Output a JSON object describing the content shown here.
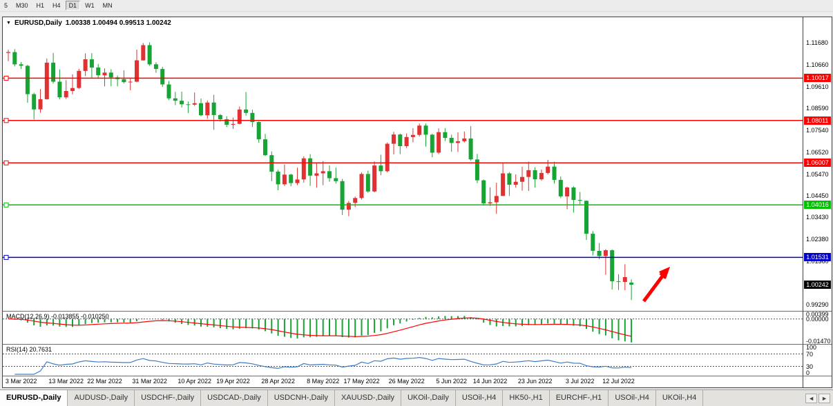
{
  "toolbar": {
    "periods": [
      "5",
      "M30",
      "H1",
      "H4",
      "D1",
      "W1",
      "MN"
    ],
    "active_period": "D1"
  },
  "chart": {
    "dropdown_icon": "▼",
    "title_symbol": "EURUSD,Daily",
    "title_ohlc": "1.00338 1.00494 0.99513 1.00242"
  },
  "chart_data": {
    "type": "candlestick",
    "symbol": "EURUSD",
    "timeframe": "Daily",
    "price_range": {
      "top": 1.129,
      "bottom": 0.99
    },
    "colors": {
      "bull": "#e03232",
      "bear": "#18a335"
    },
    "y_axis_labels": [
      "1.11680",
      "1.10660",
      "1.09610",
      "1.08590",
      "1.07540",
      "1.06520",
      "1.05470",
      "1.04450",
      "1.03430",
      "1.02380",
      "1.01360",
      "0.99290"
    ],
    "levels": [
      {
        "label": "1.10017",
        "price": 1.10017,
        "color": "#ff0000"
      },
      {
        "label": "1.08011",
        "price": 1.08011,
        "color": "#ff0000"
      },
      {
        "label": "1.06007",
        "price": 1.06007,
        "color": "#ff0000"
      },
      {
        "label": "1.04016",
        "price": 1.04016,
        "color": "#00c000"
      },
      {
        "label": "1.01531",
        "price": 1.01531,
        "color": "#0000c8"
      }
    ],
    "current_price": {
      "label": "1.00242",
      "price": 1.00242,
      "bg": "#000000"
    },
    "annotation": {
      "type": "arrow",
      "direction": "up-right",
      "color": "#ff0000"
    },
    "x_labels": [
      "3 Mar 2022",
      "13 Mar 2022",
      "22 Mar 2022",
      "31 Mar 2022",
      "10 Apr 2022",
      "19 Apr 2022",
      "28 Apr 2022",
      "8 May 2022",
      "17 May 2022",
      "26 May 2022",
      "5 Jun 2022",
      "14 Jun 2022",
      "23 Jun 2022",
      "3 Jul 2022",
      "12 Jul 2022"
    ],
    "x_label_indices": [
      2,
      9,
      15,
      22,
      29,
      35,
      42,
      49,
      55,
      62,
      69,
      75,
      82,
      89,
      95
    ],
    "candles": [
      [
        1.1121,
        1.1136,
        1.1082,
        1.1125
      ],
      [
        1.1125,
        1.1139,
        1.1057,
        1.1067
      ],
      [
        1.1067,
        1.1078,
        1.1045,
        1.106
      ],
      [
        1.106,
        1.1065,
        1.0885,
        1.0926
      ],
      [
        1.0926,
        1.0932,
        1.0806,
        1.0854
      ],
      [
        1.0854,
        1.095,
        1.0838,
        1.0902
      ],
      [
        1.0902,
        1.1095,
        1.09,
        1.1075
      ],
      [
        1.1075,
        1.1121,
        1.0976,
        1.0985
      ],
      [
        1.0985,
        1.1043,
        1.0901,
        1.0911
      ],
      [
        1.0911,
        1.0992,
        1.0903,
        1.0941
      ],
      [
        1.0941,
        1.102,
        1.0925,
        1.0955
      ],
      [
        1.0955,
        1.1046,
        1.095,
        1.1036
      ],
      [
        1.1036,
        1.1119,
        1.1012,
        1.1091
      ],
      [
        1.1091,
        1.112,
        1.1003,
        1.1052
      ],
      [
        1.1052,
        1.1069,
        1.0999,
        1.1015
      ],
      [
        1.1015,
        1.1048,
        1.0963,
        1.1028
      ],
      [
        1.1028,
        1.1044,
        1.0963,
        1.1005
      ],
      [
        1.1005,
        1.1014,
        1.0963,
        1.0997
      ],
      [
        1.0997,
        1.1039,
        1.0977,
        1.0983
      ],
      [
        1.0983,
        1.0999,
        1.0944,
        1.0985
      ],
      [
        1.0985,
        1.1137,
        1.0982,
        1.1086
      ],
      [
        1.1086,
        1.1168,
        1.1084,
        1.1158
      ],
      [
        1.1158,
        1.1171,
        1.106,
        1.1067
      ],
      [
        1.1067,
        1.1077,
        1.1027,
        1.1045
      ],
      [
        1.1045,
        1.1055,
        1.096,
        1.0972
      ],
      [
        1.0972,
        1.0988,
        1.0898,
        1.0906
      ],
      [
        1.0906,
        1.0937,
        1.0874,
        1.0895
      ],
      [
        1.0895,
        1.0938,
        1.0863,
        1.0878
      ],
      [
        1.0878,
        1.0891,
        1.0836,
        1.0876
      ],
      [
        1.0876,
        1.0934,
        1.087,
        1.0883
      ],
      [
        1.0883,
        1.0905,
        1.0821,
        1.0826
      ],
      [
        1.0826,
        1.0896,
        1.0809,
        1.0886
      ],
      [
        1.0886,
        1.0923,
        1.0757,
        1.0827
      ],
      [
        1.0827,
        1.0832,
        1.0796,
        1.0807
      ],
      [
        1.0807,
        1.0821,
        1.077,
        1.0781
      ],
      [
        1.0781,
        1.0815,
        1.0761,
        1.0785
      ],
      [
        1.0785,
        1.0867,
        1.0783,
        1.0853
      ],
      [
        1.0853,
        1.0936,
        1.0824,
        1.0837
      ],
      [
        1.0837,
        1.0852,
        1.077,
        1.0794
      ],
      [
        1.0794,
        1.0797,
        1.0696,
        1.0712
      ],
      [
        1.0712,
        1.0738,
        1.0633,
        1.0637
      ],
      [
        1.0637,
        1.0655,
        1.0514,
        1.0559
      ],
      [
        1.0559,
        1.0568,
        1.0471,
        1.0499
      ],
      [
        1.0499,
        1.0593,
        1.0491,
        1.0545
      ],
      [
        1.0545,
        1.0549,
        1.049,
        1.0505
      ],
      [
        1.0505,
        1.0578,
        1.0495,
        1.0522
      ],
      [
        1.0522,
        1.0632,
        1.0507,
        1.0622
      ],
      [
        1.0622,
        1.0642,
        1.0492,
        1.054
      ],
      [
        1.054,
        1.0599,
        1.0483,
        1.0551
      ],
      [
        1.0551,
        1.0609,
        1.0495,
        1.0561
      ],
      [
        1.0561,
        1.0588,
        1.0511,
        1.0528
      ],
      [
        1.0528,
        1.0578,
        1.0503,
        1.0514
      ],
      [
        1.0514,
        1.0525,
        1.0354,
        1.0379
      ],
      [
        1.0379,
        1.042,
        1.0348,
        1.0411
      ],
      [
        1.0411,
        1.0441,
        1.0391,
        1.0434
      ],
      [
        1.0434,
        1.0555,
        1.0427,
        1.0548
      ],
      [
        1.0548,
        1.0564,
        1.0459,
        1.0465
      ],
      [
        1.0465,
        1.0607,
        1.0461,
        1.0588
      ],
      [
        1.0588,
        1.0639,
        1.0542,
        1.0561
      ],
      [
        1.0561,
        1.0697,
        1.0556,
        1.0691
      ],
      [
        1.0691,
        1.0748,
        1.0641,
        1.0735
      ],
      [
        1.0735,
        1.0739,
        1.0642,
        1.068
      ],
      [
        1.068,
        1.074,
        1.0671,
        1.0723
      ],
      [
        1.0723,
        1.0765,
        1.0698,
        1.0733
      ],
      [
        1.0733,
        1.0787,
        1.0725,
        1.0777
      ],
      [
        1.0777,
        1.0787,
        1.0678,
        1.0734
      ],
      [
        1.0734,
        1.0739,
        1.0627,
        1.0649
      ],
      [
        1.0649,
        1.0764,
        1.0642,
        1.0746
      ],
      [
        1.0746,
        1.0765,
        1.0704,
        1.0719
      ],
      [
        1.0719,
        1.0734,
        1.0653,
        1.0695
      ],
      [
        1.0695,
        1.0745,
        1.0652,
        1.0703
      ],
      [
        1.0703,
        1.0749,
        1.0697,
        1.0716
      ],
      [
        1.0716,
        1.0774,
        1.0611,
        1.0617
      ],
      [
        1.0617,
        1.0643,
        1.0505,
        1.0518
      ],
      [
        1.0518,
        1.0522,
        1.0399,
        1.0409
      ],
      [
        1.0409,
        1.0485,
        1.0397,
        1.0414
      ],
      [
        1.0414,
        1.0507,
        1.0359,
        1.0444
      ],
      [
        1.0444,
        1.0601,
        1.0444,
        1.0551
      ],
      [
        1.0551,
        1.0557,
        1.0444,
        1.0497
      ],
      [
        1.0497,
        1.0546,
        1.0483,
        1.0511
      ],
      [
        1.0511,
        1.0582,
        1.0469,
        1.0534
      ],
      [
        1.0534,
        1.0606,
        1.0468,
        1.0566
      ],
      [
        1.0566,
        1.058,
        1.0483,
        1.0523
      ],
      [
        1.0523,
        1.0569,
        1.0516,
        1.0553
      ],
      [
        1.0553,
        1.0615,
        1.0546,
        1.0583
      ],
      [
        1.0583,
        1.0606,
        1.0503,
        1.052
      ],
      [
        1.052,
        1.0536,
        1.0434,
        1.0442
      ],
      [
        1.0442,
        1.0488,
        1.0381,
        1.0484
      ],
      [
        1.0484,
        1.049,
        1.0365,
        1.0425
      ],
      [
        1.0425,
        1.0463,
        1.0405,
        1.0421
      ],
      [
        1.0421,
        1.0423,
        1.0235,
        1.0265
      ],
      [
        1.0265,
        1.0278,
        1.0162,
        1.0184
      ],
      [
        1.0184,
        1.0221,
        1.0144,
        1.016
      ],
      [
        1.016,
        1.0192,
        1.0071,
        1.0187
      ],
      [
        1.0187,
        1.0191,
        1.0001,
        1.004
      ],
      [
        1.004,
        1.0074,
        0.9999,
        1.0037
      ],
      [
        1.0037,
        1.0121,
        0.9998,
        1.006
      ],
      [
        1.0034,
        1.0049,
        0.9951,
        1.0024
      ]
    ]
  },
  "indicators": {
    "macd": {
      "label": "MACD(12,26,9) -0.013855 -0.010250",
      "fast": 12,
      "slow": 26,
      "signal_period": 9,
      "value": -0.013855,
      "signal_value": -0.01025,
      "axis": [
        "0.00399",
        "0.00000",
        "-0.01470"
      ],
      "range": {
        "max": 0.0045,
        "min": -0.0152
      },
      "hist_color": "#18a335",
      "signal_color": "#ff0000"
    },
    "rsi": {
      "label": "RSI(14) 20.7631",
      "period": 14,
      "value": 20.7631,
      "axis": [
        "100",
        "70",
        "30",
        "0"
      ],
      "levels": [
        70,
        30
      ],
      "color": "#3e7bc4"
    }
  },
  "tabs": {
    "items": [
      "EURUSD-,Daily",
      "AUDUSD-,Daily",
      "USDCHF-,Daily",
      "USDCAD-,Daily",
      "USDCNH-,Daily",
      "XAUUSD-,Daily",
      "UKOil-,Daily",
      "USOil-,H4",
      "HK50-,H1",
      "EURCHF-,H1",
      "USOil-,H4",
      "UKOil-,H4"
    ],
    "active_index": 0,
    "scroll_left": "◄",
    "scroll_right": "►"
  }
}
